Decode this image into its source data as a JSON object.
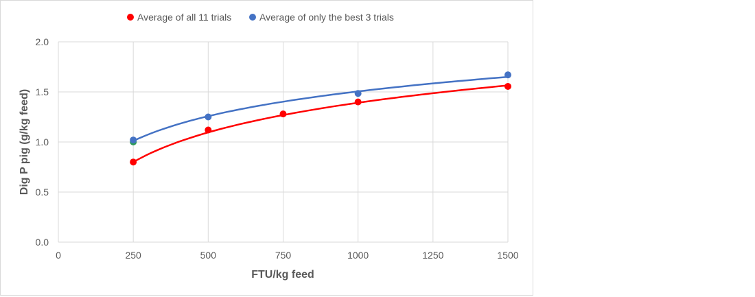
{
  "chart_data": {
    "type": "scatter",
    "title": "",
    "xlabel": "FTU/kg feed",
    "ylabel": "Dig P pig (g/kg feed)",
    "xlim": [
      0,
      1500
    ],
    "ylim": [
      0,
      2.0
    ],
    "xticks": [
      0,
      250,
      500,
      750,
      1000,
      1250,
      1500
    ],
    "yticks": [
      "0.0",
      "0.5",
      "1.0",
      "1.5",
      "2.0"
    ],
    "grid": true,
    "legend_position": "top",
    "series": [
      {
        "name": "Average of all 11 trials",
        "color": "#ff0000",
        "x": [
          250,
          500,
          750,
          1000,
          1500
        ],
        "y": [
          0.8,
          1.12,
          1.28,
          1.4,
          1.555
        ],
        "trendline": {
          "type": "logarithmic",
          "a": -1.558,
          "b": 0.427
        }
      },
      {
        "name": "Average of only the best 3 trials",
        "color": "#4472c4",
        "x": [
          250,
          500,
          1000,
          1500
        ],
        "y": [
          1.02,
          1.25,
          1.485,
          1.67
        ],
        "trendline": {
          "type": "logarithmic",
          "a": -0.961,
          "b": 0.357
        }
      }
    ],
    "extra_points": [
      {
        "x": 250,
        "y": 1.0,
        "color": "#2e9b5a"
      }
    ]
  }
}
